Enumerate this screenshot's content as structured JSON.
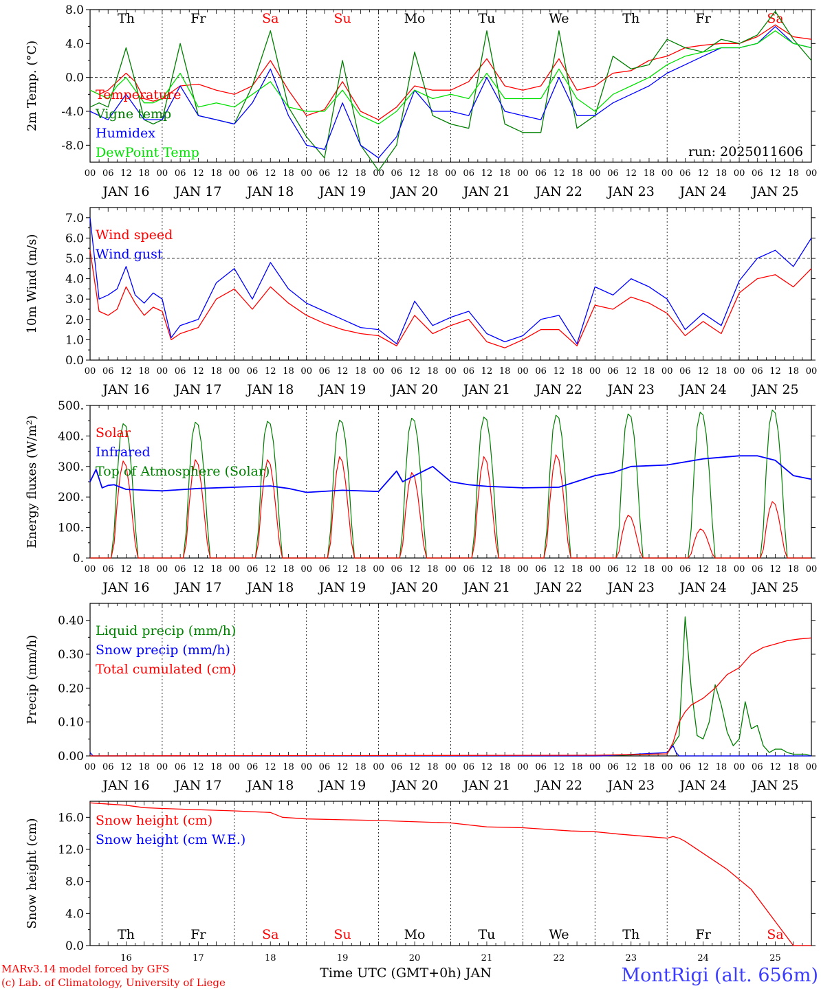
{
  "meteogram": {
    "days": [
      16,
      17,
      18,
      19,
      20,
      21,
      22,
      23,
      24,
      25
    ],
    "day_labels": [
      "JAN 16",
      "JAN 17",
      "JAN 18",
      "JAN 19",
      "JAN 20",
      "JAN 21",
      "JAN 22",
      "JAN 23",
      "JAN 24",
      "JAN 25"
    ],
    "weekdays": [
      "Th",
      "Fr",
      "Sa",
      "Su",
      "Mo",
      "Tu",
      "We",
      "Th",
      "Fr",
      "Sa"
    ],
    "weekend_flags": [
      false,
      false,
      true,
      true,
      false,
      false,
      false,
      false,
      false,
      true
    ],
    "hour_ticks": [
      "00",
      "06",
      "12",
      "18"
    ],
    "final_hour_tick": "00",
    "bottom_day_numbers": [
      "16",
      "17",
      "18",
      "19",
      "20",
      "21",
      "22",
      "23",
      "24",
      "25"
    ],
    "run_label": "run: 2025011606",
    "xlabel": "Time UTC (GMT+0h) JAN",
    "credits": [
      "MARv3.14 model forced by GFS",
      "(c) Lab. of Climatology, University of Liege"
    ],
    "station": "MontRigi (alt. 656m)"
  },
  "chart_data": [
    {
      "type": "line",
      "ylabel": "2m Temp. (°C)",
      "ylim": [
        -10,
        8
      ],
      "yticks": [
        -8,
        -4,
        0,
        4,
        8
      ],
      "ytick_labels": [
        "-8.0",
        "-4.0",
        "0.0",
        "4.0",
        "8.0"
      ],
      "reference_line": 0,
      "x_unit": "hours since JAN 16 00 UTC",
      "series": [
        {
          "name": "Temperature",
          "color": "#ff0000",
          "x": [
            0,
            3,
            6,
            9,
            12,
            15,
            18,
            21,
            24,
            30,
            36,
            42,
            48,
            54,
            60,
            66,
            72,
            78,
            84,
            90,
            96,
            102,
            108,
            114,
            120,
            126,
            132,
            138,
            144,
            150,
            156,
            162,
            168,
            174,
            180,
            186,
            192,
            198,
            204,
            210,
            216,
            222,
            228,
            234,
            240
          ],
          "values": [
            -1.5,
            -2.0,
            -1.5,
            -0.5,
            0.5,
            -0.5,
            -2.5,
            -2.8,
            -2.5,
            -1.0,
            -0.8,
            -1.5,
            -2.0,
            -1.0,
            2.0,
            -1.5,
            -4.5,
            -3.8,
            -0.5,
            -4.0,
            -5.0,
            -3.5,
            -1.0,
            -1.5,
            -1.5,
            -0.5,
            2.2,
            -1.0,
            -1.5,
            -1.0,
            2.2,
            -1.5,
            -1.0,
            0.5,
            0.8,
            2.0,
            2.5,
            3.5,
            3.8,
            4.0,
            4.0,
            4.8,
            6.2,
            4.8,
            4.5
          ]
        },
        {
          "name": "Vigne temp",
          "color": "#008000",
          "x": [
            0,
            3,
            6,
            9,
            12,
            15,
            18,
            21,
            24,
            30,
            36,
            42,
            48,
            54,
            60,
            66,
            72,
            78,
            84,
            90,
            96,
            102,
            108,
            114,
            120,
            126,
            132,
            138,
            144,
            150,
            156,
            162,
            168,
            174,
            180,
            186,
            192,
            198,
            204,
            210,
            216,
            222,
            228,
            234,
            240
          ],
          "values": [
            -3.5,
            -3.0,
            -3.5,
            0.0,
            3.5,
            -0.5,
            -5.0,
            -5.5,
            -5.0,
            4.0,
            -4.5,
            -5.0,
            -5.5,
            -1.0,
            5.5,
            -3.5,
            -7.0,
            -9.5,
            2.0,
            -8.0,
            -11.0,
            -8.0,
            3.0,
            -4.5,
            -5.5,
            -6.0,
            5.5,
            -5.5,
            -6.5,
            -6.5,
            5.5,
            -6.0,
            -4.5,
            2.5,
            1.0,
            1.5,
            4.5,
            3.5,
            3.0,
            4.5,
            4.0,
            5.0,
            7.8,
            4.5,
            2.0
          ]
        },
        {
          "name": "Humidex",
          "color": "#0000ff",
          "x": [
            0,
            3,
            6,
            9,
            12,
            15,
            18,
            21,
            24,
            30,
            36,
            42,
            48,
            54,
            60,
            66,
            72,
            78,
            84,
            90,
            96,
            102,
            108,
            114,
            120,
            126,
            132,
            138,
            144,
            150,
            156,
            162,
            168,
            174,
            180,
            186,
            192,
            198,
            204,
            210,
            216,
            222,
            228,
            234,
            240
          ],
          "values": [
            -4.0,
            -4.5,
            -5.0,
            -3.5,
            -2.0,
            -3.5,
            -5.0,
            -5.0,
            -5.0,
            -1.0,
            -4.5,
            -5.0,
            -5.5,
            -3.0,
            1.0,
            -4.5,
            -8.0,
            -8.5,
            -3.0,
            -8.0,
            -9.5,
            -7.0,
            -1.5,
            -4.0,
            -4.0,
            -4.5,
            0.0,
            -4.0,
            -4.5,
            -5.0,
            0.0,
            -4.5,
            -4.5,
            -3.0,
            -2.0,
            -1.0,
            0.5,
            1.5,
            2.5,
            3.5,
            3.5,
            4.0,
            6.0,
            4.0,
            3.5
          ]
        },
        {
          "name": "DewPoint Temp",
          "color": "#00e000",
          "x": [
            0,
            3,
            6,
            9,
            12,
            15,
            18,
            21,
            24,
            30,
            36,
            42,
            48,
            54,
            60,
            66,
            72,
            78,
            84,
            90,
            96,
            102,
            108,
            114,
            120,
            126,
            132,
            138,
            144,
            150,
            156,
            162,
            168,
            174,
            180,
            186,
            192,
            198,
            204,
            210,
            216,
            222,
            228,
            234,
            240
          ],
          "values": [
            -1.5,
            -2.0,
            -2.5,
            -1.0,
            0.0,
            -1.5,
            -3.0,
            -3.0,
            -2.5,
            0.5,
            -3.5,
            -3.0,
            -3.5,
            -2.0,
            -0.5,
            -3.5,
            -4.0,
            -4.0,
            -1.5,
            -4.5,
            -5.5,
            -4.0,
            -1.5,
            -2.5,
            -2.0,
            -2.5,
            0.5,
            -2.5,
            -2.5,
            -2.5,
            1.0,
            -2.5,
            -4.0,
            -2.0,
            -1.0,
            0.0,
            1.5,
            2.5,
            3.0,
            3.5,
            3.5,
            4.0,
            5.5,
            4.0,
            3.5
          ]
        }
      ]
    },
    {
      "type": "line",
      "ylabel": "10m Wind (m/s)",
      "ylim": [
        0,
        7.5
      ],
      "yticks": [
        0,
        1,
        2,
        3,
        4,
        5,
        6,
        7
      ],
      "ytick_labels": [
        "0.0",
        "1.0",
        "2.0",
        "3.0",
        "4.0",
        "5.0",
        "6.0",
        "7.0"
      ],
      "reference_line": 5,
      "x_unit": "hours since JAN 16 00 UTC",
      "series": [
        {
          "name": "Wind speed",
          "color": "#ff0000",
          "x": [
            0,
            3,
            6,
            9,
            12,
            15,
            18,
            21,
            24,
            27,
            30,
            36,
            42,
            48,
            54,
            60,
            66,
            72,
            78,
            84,
            90,
            96,
            102,
            108,
            114,
            120,
            126,
            132,
            138,
            144,
            150,
            156,
            162,
            168,
            174,
            180,
            186,
            192,
            198,
            204,
            210,
            216,
            222,
            228,
            234,
            240
          ],
          "values": [
            5.4,
            2.4,
            2.2,
            2.5,
            3.6,
            2.8,
            2.2,
            2.6,
            2.4,
            1.0,
            1.3,
            1.6,
            3.0,
            3.5,
            2.5,
            3.6,
            2.8,
            2.2,
            1.8,
            1.5,
            1.3,
            1.2,
            0.7,
            2.2,
            1.3,
            1.7,
            2.0,
            0.9,
            0.6,
            1.0,
            1.5,
            1.5,
            0.7,
            2.7,
            2.5,
            3.1,
            2.8,
            2.3,
            1.2,
            1.9,
            1.3,
            3.3,
            4.0,
            4.2,
            3.6,
            4.5
          ]
        },
        {
          "name": "Wind gust",
          "color": "#0000ff",
          "x": [
            0,
            3,
            6,
            9,
            12,
            15,
            18,
            21,
            24,
            27,
            30,
            36,
            42,
            48,
            54,
            60,
            66,
            72,
            78,
            84,
            90,
            96,
            102,
            108,
            114,
            120,
            126,
            132,
            138,
            144,
            150,
            156,
            162,
            168,
            174,
            180,
            186,
            192,
            198,
            204,
            210,
            216,
            222,
            228,
            234,
            240
          ],
          "values": [
            7.0,
            3.0,
            3.2,
            3.5,
            4.6,
            3.2,
            2.8,
            3.3,
            3.0,
            1.1,
            1.7,
            2.0,
            3.8,
            4.5,
            3.0,
            4.8,
            3.5,
            2.8,
            2.4,
            2.0,
            1.6,
            1.5,
            0.8,
            2.9,
            1.7,
            2.1,
            2.4,
            1.3,
            0.9,
            1.2,
            2.0,
            2.2,
            0.8,
            3.6,
            3.2,
            4.0,
            3.6,
            3.0,
            1.5,
            2.3,
            1.7,
            3.9,
            5.0,
            5.4,
            4.6,
            6.0
          ]
        }
      ]
    },
    {
      "type": "line",
      "ylabel": "Energy fluxes (W/m²)",
      "ylim": [
        0,
        500
      ],
      "yticks": [
        0,
        100,
        200,
        300,
        400,
        500
      ],
      "ytick_labels": [
        "0.",
        "100.",
        "200.",
        "300.",
        "400.",
        "500."
      ],
      "x_unit": "hours since JAN 16 00 UTC",
      "diurnal_profiles": {
        "hours_of_day": [
          0,
          7,
          8,
          9,
          10,
          11,
          12,
          13,
          14,
          15,
          16,
          17,
          24
        ],
        "solar_shape": [
          0,
          0,
          0.15,
          0.55,
          0.85,
          1.0,
          0.95,
          0.75,
          0.45,
          0.15,
          0,
          0,
          0
        ],
        "toa_shape": [
          0,
          0,
          0.2,
          0.6,
          0.9,
          1.0,
          0.98,
          0.85,
          0.6,
          0.25,
          0,
          0,
          0
        ]
      },
      "solar_peak_by_day": [
        318,
        322,
        322,
        332,
        280,
        332,
        338,
        140,
        95,
        185
      ],
      "toa_peak_by_day": [
        440,
        445,
        448,
        452,
        458,
        462,
        468,
        472,
        478,
        485
      ],
      "series": [
        {
          "name": "Solar",
          "color": "#ff0000"
        },
        {
          "name": "Infrared",
          "color": "#0000ff",
          "x": [
            0,
            2,
            4,
            6,
            8,
            12,
            24,
            36,
            48,
            60,
            66,
            72,
            84,
            96,
            102,
            104,
            108,
            114,
            120,
            126,
            132,
            144,
            156,
            168,
            174,
            180,
            192,
            204,
            216,
            222,
            228,
            234,
            240
          ],
          "values": [
            250,
            290,
            230,
            238,
            240,
            225,
            220,
            228,
            232,
            236,
            228,
            215,
            222,
            218,
            285,
            250,
            270,
            300,
            250,
            240,
            235,
            230,
            232,
            270,
            280,
            300,
            305,
            325,
            335,
            335,
            320,
            270,
            258
          ]
        },
        {
          "name": "Top of Atmosphere (Solar)",
          "color": "#008000"
        }
      ]
    },
    {
      "type": "line",
      "ylabel": "Precip (mm/h)",
      "ylim": [
        0,
        0.45
      ],
      "yticks": [
        0,
        0.1,
        0.2,
        0.3,
        0.4
      ],
      "ytick_labels": [
        "0.00",
        "0.10",
        "0.20",
        "0.30",
        "0.40"
      ],
      "x_unit": "hours since JAN 16 00 UTC",
      "series": [
        {
          "name": "Liquid precip (mm/h)",
          "color": "#008000",
          "x": [
            0,
            168,
            192,
            196,
            198,
            200,
            202,
            204,
            206,
            208,
            210,
            212,
            214,
            216,
            218,
            220,
            222,
            224,
            226,
            228,
            230,
            232,
            234,
            236,
            238,
            240
          ],
          "values": [
            0.0,
            0.0,
            0.006,
            0.06,
            0.41,
            0.2,
            0.06,
            0.05,
            0.1,
            0.21,
            0.15,
            0.07,
            0.03,
            0.05,
            0.16,
            0.08,
            0.09,
            0.03,
            0.01,
            0.02,
            0.02,
            0.01,
            0.005,
            0.005,
            0.005,
            0.0
          ]
        },
        {
          "name": "Snow precip (mm/h)",
          "color": "#0000ff",
          "x": [
            0,
            1,
            170,
            192,
            194,
            195,
            196,
            240
          ],
          "values": [
            0.01,
            0.0,
            0.0,
            0.01,
            0.03,
            0.01,
            0.0,
            0.0
          ]
        },
        {
          "name": "Total cumulated (cm)",
          "color": "#ff0000",
          "x": [
            0,
            168,
            192,
            194,
            196,
            198,
            200,
            204,
            208,
            212,
            216,
            220,
            224,
            228,
            232,
            236,
            240
          ],
          "values": [
            0.0,
            0.002,
            0.006,
            0.04,
            0.1,
            0.13,
            0.15,
            0.17,
            0.2,
            0.24,
            0.26,
            0.3,
            0.32,
            0.33,
            0.34,
            0.345,
            0.348
          ]
        }
      ]
    },
    {
      "type": "line",
      "ylabel": "Snow height (cm)",
      "ylim": [
        0,
        18
      ],
      "yticks": [
        0,
        4,
        8,
        12,
        16
      ],
      "ytick_labels": [
        "0.0",
        "4.0",
        "8.0",
        "12.0",
        "16.0"
      ],
      "x_unit": "hours since JAN 16 00 UTC",
      "series": [
        {
          "name": "Snow height (cm)",
          "color": "#ff0000",
          "x": [
            0,
            12,
            18,
            24,
            48,
            60,
            64,
            72,
            96,
            120,
            132,
            144,
            160,
            168,
            176,
            192,
            194,
            196,
            198,
            204,
            212,
            220,
            228,
            234,
            236,
            240
          ],
          "values": [
            17.8,
            17.5,
            17.2,
            17.1,
            16.8,
            16.6,
            16.0,
            15.8,
            15.6,
            15.3,
            14.8,
            14.7,
            14.3,
            14.2,
            13.9,
            13.4,
            13.6,
            13.4,
            13.0,
            11.5,
            9.5,
            7.0,
            3.0,
            0.0,
            0.0,
            0.0
          ]
        },
        {
          "name": "Snow height (cm W.E.)",
          "color": "#0000ff"
        }
      ]
    }
  ]
}
